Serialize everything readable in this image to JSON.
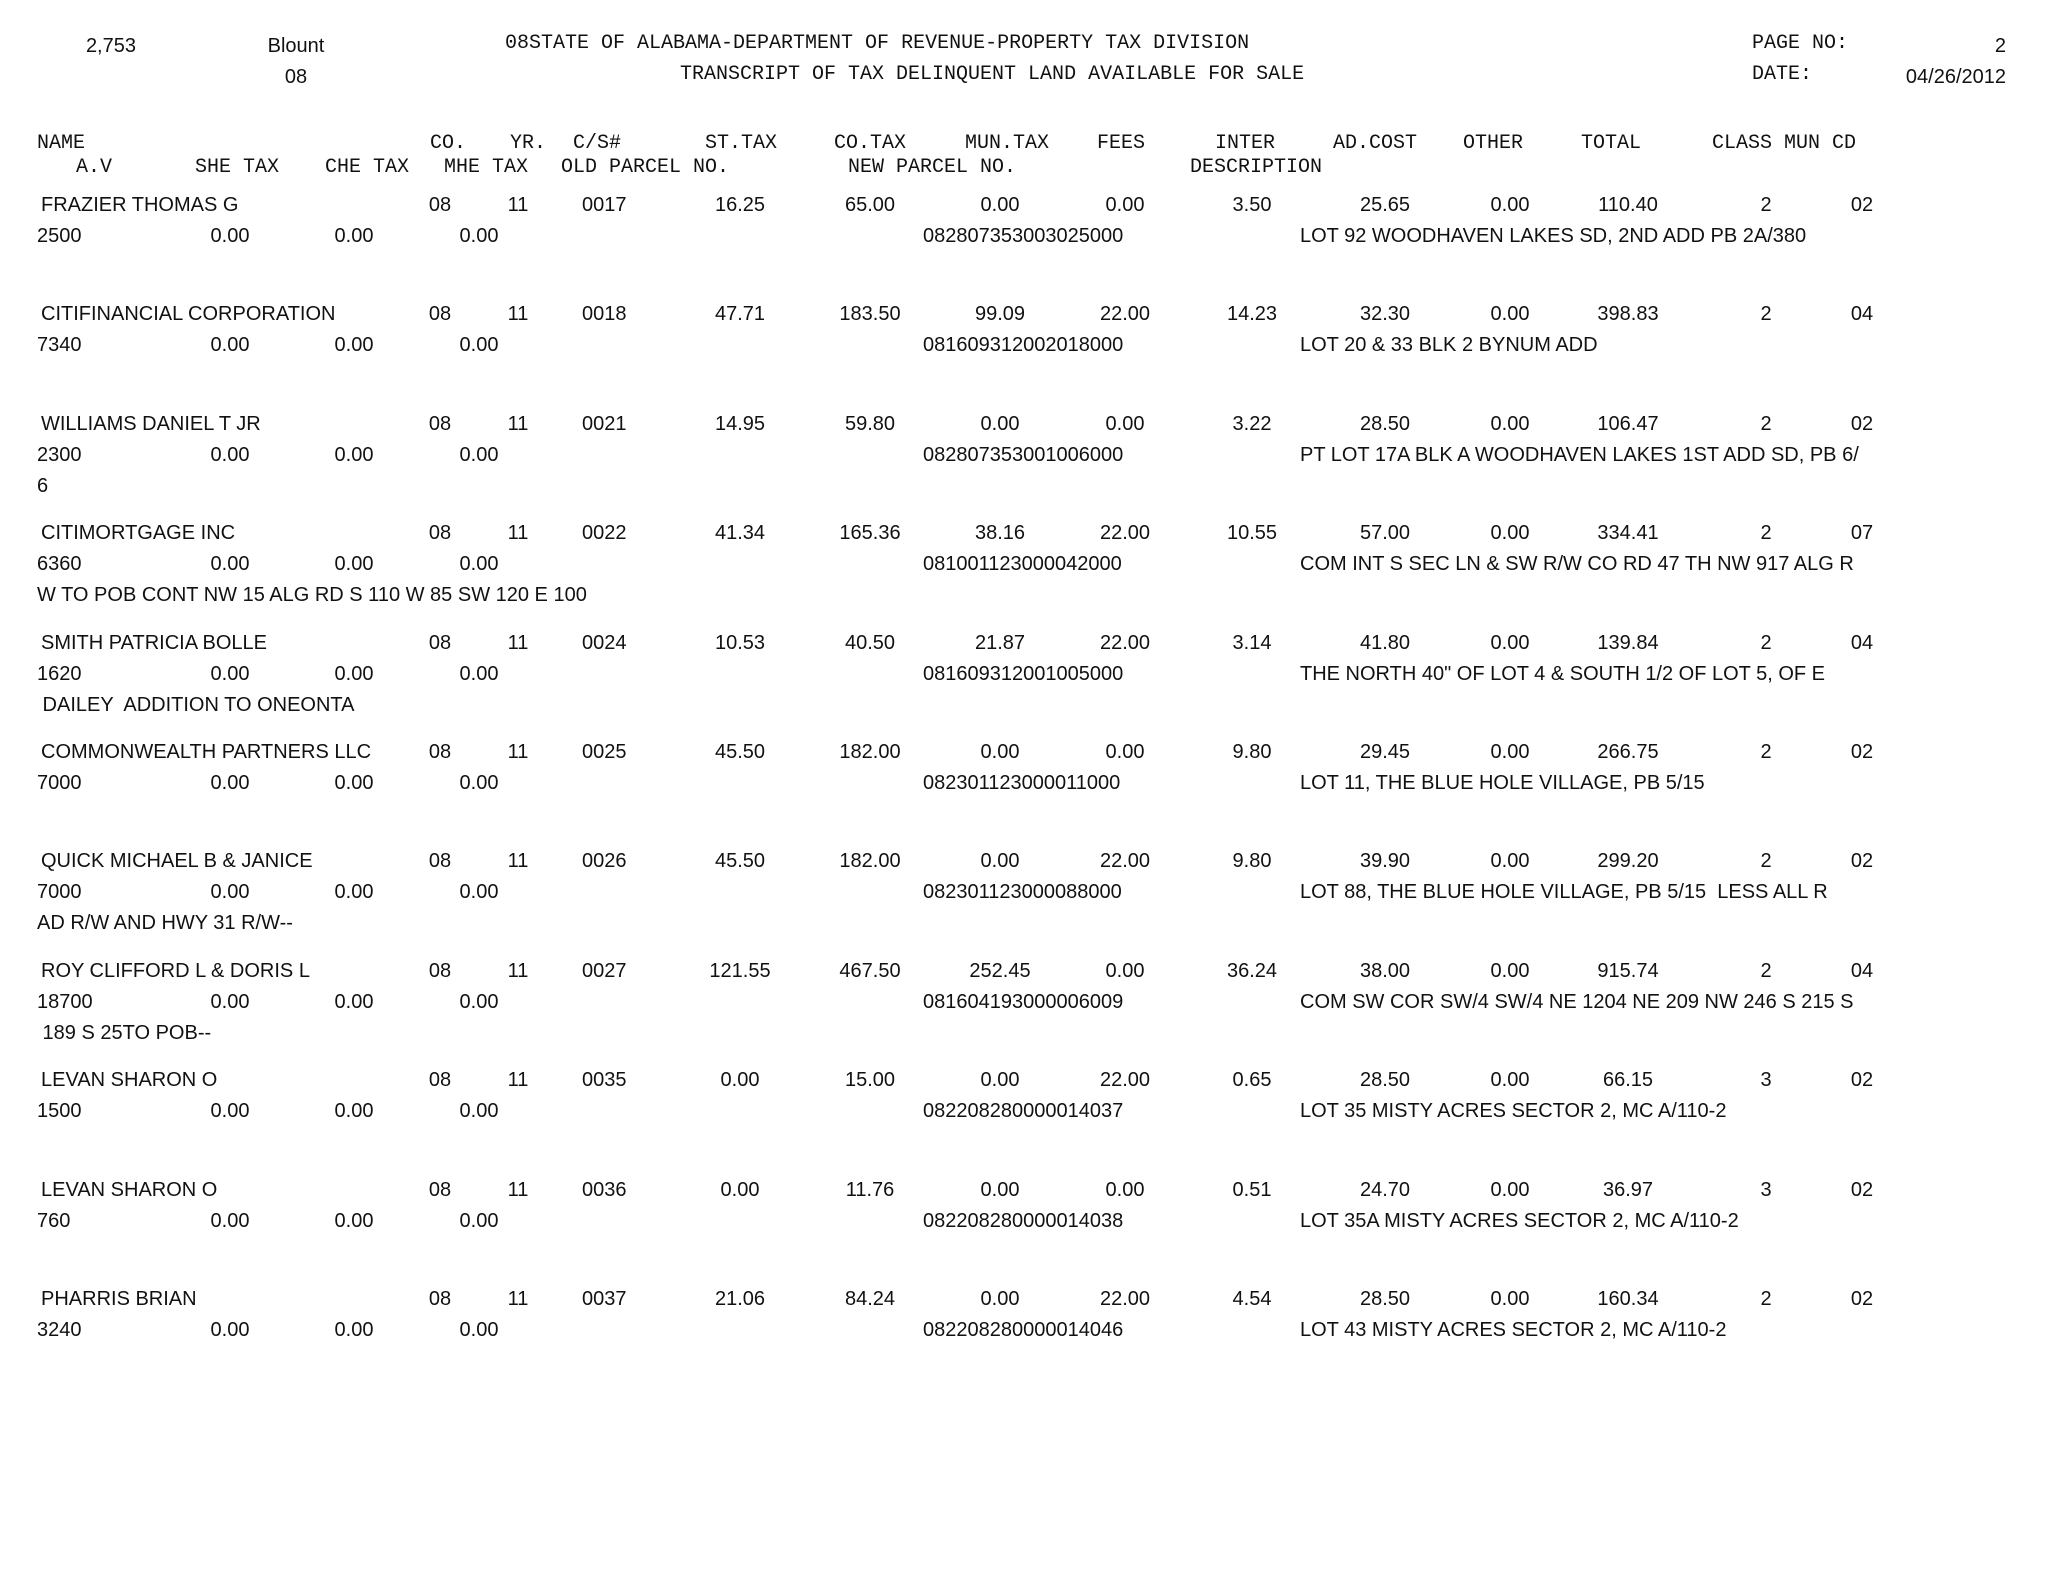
{
  "header": {
    "count": "2,753",
    "county_name": "Blount",
    "county_code": "08",
    "title_line1": "08STATE OF ALABAMA-DEPARTMENT OF REVENUE-PROPERTY TAX DIVISION",
    "title_line2": "TRANSCRIPT OF TAX DELINQUENT LAND AVAILABLE FOR SALE",
    "page_label": "PAGE NO:",
    "page_value": "2",
    "date_label": "DATE:",
    "date_value": "04/26/2012"
  },
  "columns": {
    "name": "NAME",
    "co": "CO.",
    "yr": "YR.",
    "cs": "C/S#",
    "st_tax": "ST.TAX",
    "co_tax": "CO.TAX",
    "mun_tax": "MUN.TAX",
    "fees": "FEES",
    "inter": "INTER",
    "ad_cost": "AD.COST",
    "other": "OTHER",
    "total": "TOTAL",
    "class_mun_cd": "CLASS MUN CD",
    "av": "A.V",
    "she_tax": "SHE TAX",
    "che_tax": "CHE TAX",
    "mhe_tax": "MHE TAX",
    "old_parcel": "OLD PARCEL NO.",
    "new_parcel": "NEW PARCEL NO.",
    "description": "DESCRIPTION"
  },
  "records": [
    {
      "name": "FRAZIER THOMAS G",
      "co": "08",
      "yr": "11",
      "cs": "0017",
      "st_tax": "16.25",
      "co_tax": "65.00",
      "mun_tax": "0.00",
      "fees": "0.00",
      "inter": "3.50",
      "ad_cost": "25.65",
      "other": "0.00",
      "total": "110.40",
      "class": "2",
      "mun_cd": "02",
      "av": "2500",
      "she_tax": "0.00",
      "che_tax": "0.00",
      "mhe_tax": "0.00",
      "new_parcel": "082807353003025000",
      "desc1": "LOT 92 WOODHAVEN LAKES SD, 2ND ADD PB 2A/380",
      "desc2": ""
    },
    {
      "name": "CITIFINANCIAL CORPORATION",
      "co": "08",
      "yr": "11",
      "cs": "0018",
      "st_tax": "47.71",
      "co_tax": "183.50",
      "mun_tax": "99.09",
      "fees": "22.00",
      "inter": "14.23",
      "ad_cost": "32.30",
      "other": "0.00",
      "total": "398.83",
      "class": "2",
      "mun_cd": "04",
      "av": "7340",
      "she_tax": "0.00",
      "che_tax": "0.00",
      "mhe_tax": "0.00",
      "new_parcel": "081609312002018000",
      "desc1": "LOT 20 & 33 BLK 2 BYNUM ADD",
      "desc2": ""
    },
    {
      "name": "WILLIAMS DANIEL T JR",
      "co": "08",
      "yr": "11",
      "cs": "0021",
      "st_tax": "14.95",
      "co_tax": "59.80",
      "mun_tax": "0.00",
      "fees": "0.00",
      "inter": "3.22",
      "ad_cost": "28.50",
      "other": "0.00",
      "total": "106.47",
      "class": "2",
      "mun_cd": "02",
      "av": "2300",
      "she_tax": "0.00",
      "che_tax": "0.00",
      "mhe_tax": "0.00",
      "new_parcel": "082807353001006000",
      "desc1": "PT LOT 17A BLK A WOODHAVEN LAKES 1ST ADD SD, PB 6/",
      "desc2": "6"
    },
    {
      "name": "CITIMORTGAGE INC",
      "co": "08",
      "yr": "11",
      "cs": "0022",
      "st_tax": "41.34",
      "co_tax": "165.36",
      "mun_tax": "38.16",
      "fees": "22.00",
      "inter": "10.55",
      "ad_cost": "57.00",
      "other": "0.00",
      "total": "334.41",
      "class": "2",
      "mun_cd": "07",
      "av": "6360",
      "she_tax": "0.00",
      "che_tax": "0.00",
      "mhe_tax": "0.00",
      "new_parcel": "081001123000042000",
      "desc1": "COM INT S SEC LN & SW R/W CO RD 47 TH NW 917 ALG R",
      "desc2": "W TO POB CONT NW 15 ALG RD S 110 W 85 SW 120 E 100"
    },
    {
      "name": "SMITH PATRICIA BOLLE",
      "co": "08",
      "yr": "11",
      "cs": "0024",
      "st_tax": "10.53",
      "co_tax": "40.50",
      "mun_tax": "21.87",
      "fees": "22.00",
      "inter": "3.14",
      "ad_cost": "41.80",
      "other": "0.00",
      "total": "139.84",
      "class": "2",
      "mun_cd": "04",
      "av": "1620",
      "she_tax": "0.00",
      "che_tax": "0.00",
      "mhe_tax": "0.00",
      "new_parcel": "081609312001005000",
      "desc1": "THE NORTH 40\" OF LOT 4 & SOUTH 1/2 OF LOT 5, OF E",
      "desc2": " DAILEY  ADDITION TO ONEONTA"
    },
    {
      "name": "COMMONWEALTH PARTNERS LLC",
      "co": "08",
      "yr": "11",
      "cs": "0025",
      "st_tax": "45.50",
      "co_tax": "182.00",
      "mun_tax": "0.00",
      "fees": "0.00",
      "inter": "9.80",
      "ad_cost": "29.45",
      "other": "0.00",
      "total": "266.75",
      "class": "2",
      "mun_cd": "02",
      "av": "7000",
      "she_tax": "0.00",
      "che_tax": "0.00",
      "mhe_tax": "0.00",
      "new_parcel": "082301123000011000",
      "desc1": "LOT 11, THE BLUE HOLE VILLAGE, PB 5/15",
      "desc2": ""
    },
    {
      "name": "QUICK MICHAEL B & JANICE",
      "co": "08",
      "yr": "11",
      "cs": "0026",
      "st_tax": "45.50",
      "co_tax": "182.00",
      "mun_tax": "0.00",
      "fees": "22.00",
      "inter": "9.80",
      "ad_cost": "39.90",
      "other": "0.00",
      "total": "299.20",
      "class": "2",
      "mun_cd": "02",
      "av": "7000",
      "she_tax": "0.00",
      "che_tax": "0.00",
      "mhe_tax": "0.00",
      "new_parcel": "082301123000088000",
      "desc1": "LOT 88, THE BLUE HOLE VILLAGE, PB 5/15  LESS ALL R",
      "desc2": "AD R/W AND HWY 31 R/W--"
    },
    {
      "name": "ROY CLIFFORD L & DORIS L",
      "co": "08",
      "yr": "11",
      "cs": "0027",
      "st_tax": "121.55",
      "co_tax": "467.50",
      "mun_tax": "252.45",
      "fees": "0.00",
      "inter": "36.24",
      "ad_cost": "38.00",
      "other": "0.00",
      "total": "915.74",
      "class": "2",
      "mun_cd": "04",
      "av": "18700",
      "she_tax": "0.00",
      "che_tax": "0.00",
      "mhe_tax": "0.00",
      "new_parcel": "081604193000006009",
      "desc1": "COM SW COR SW/4 SW/4 NE 1204 NE 209 NW 246 S 215 S",
      "desc2": " 189 S 25TO POB--"
    },
    {
      "name": "LEVAN SHARON O",
      "co": "08",
      "yr": "11",
      "cs": "0035",
      "st_tax": "0.00",
      "co_tax": "15.00",
      "mun_tax": "0.00",
      "fees": "22.00",
      "inter": "0.65",
      "ad_cost": "28.50",
      "other": "0.00",
      "total": "66.15",
      "class": "3",
      "mun_cd": "02",
      "av": "1500",
      "she_tax": "0.00",
      "che_tax": "0.00",
      "mhe_tax": "0.00",
      "new_parcel": "082208280000014037",
      "desc1": "LOT 35 MISTY ACRES SECTOR 2, MC A/110-2",
      "desc2": ""
    },
    {
      "name": "LEVAN SHARON O",
      "co": "08",
      "yr": "11",
      "cs": "0036",
      "st_tax": "0.00",
      "co_tax": "11.76",
      "mun_tax": "0.00",
      "fees": "0.00",
      "inter": "0.51",
      "ad_cost": "24.70",
      "other": "0.00",
      "total": "36.97",
      "class": "3",
      "mun_cd": "02",
      "av": "760",
      "she_tax": "0.00",
      "che_tax": "0.00",
      "mhe_tax": "0.00",
      "new_parcel": "082208280000014038",
      "desc1": "LOT 35A MISTY ACRES SECTOR 2, MC A/110-2",
      "desc2": ""
    },
    {
      "name": "PHARRIS BRIAN",
      "co": "08",
      "yr": "11",
      "cs": "0037",
      "st_tax": "21.06",
      "co_tax": "84.24",
      "mun_tax": "0.00",
      "fees": "22.00",
      "inter": "4.54",
      "ad_cost": "28.50",
      "other": "0.00",
      "total": "160.34",
      "class": "2",
      "mun_cd": "02",
      "av": "3240",
      "she_tax": "0.00",
      "che_tax": "0.00",
      "mhe_tax": "0.00",
      "new_parcel": "082208280000014046",
      "desc1": "LOT 43 MISTY ACRES SECTOR 2, MC A/110-2",
      "desc2": ""
    }
  ]
}
